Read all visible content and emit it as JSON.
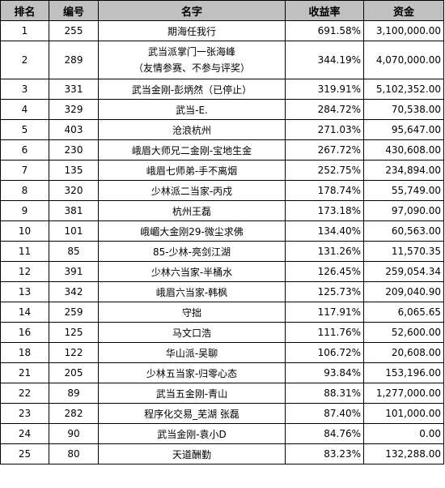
{
  "table": {
    "headers": [
      "排名",
      "编号",
      "名字",
      "收益率",
      "资金"
    ],
    "rows": [
      {
        "rank": "1",
        "code": "255",
        "name": "期海任我行",
        "rate": "691.58%",
        "fund": "3,100,000.00"
      },
      {
        "rank": "2",
        "code": "289",
        "name": "武当派掌门一张海峰",
        "name2": "（友情参赛、不参与评奖）",
        "rate": "344.19%",
        "fund": "4,070,000.00"
      },
      {
        "rank": "3",
        "code": "331",
        "name": "武当金刚-彭炳然（已停止）",
        "rate": "319.91%",
        "fund": "5,102,352.00"
      },
      {
        "rank": "4",
        "code": "329",
        "name": "武当-E.",
        "rate": "284.72%",
        "fund": "70,538.00"
      },
      {
        "rank": "5",
        "code": "403",
        "name": "沧浪杭州",
        "rate": "271.03%",
        "fund": "95,647.00"
      },
      {
        "rank": "6",
        "code": "230",
        "name": "峨眉大师兄二金刚-宝地生金",
        "rate": "267.72%",
        "fund": "430,608.00"
      },
      {
        "rank": "7",
        "code": "135",
        "name": "峨眉七师弟-手不离烟",
        "rate": "252.75%",
        "fund": "234,894.00"
      },
      {
        "rank": "8",
        "code": "320",
        "name": "少林派二当家-丙戍",
        "rate": "178.74%",
        "fund": "55,749.00"
      },
      {
        "rank": "9",
        "code": "381",
        "name": "杭州王磊",
        "rate": "173.18%",
        "fund": "97,090.00"
      },
      {
        "rank": "10",
        "code": "101",
        "name": "峨嵋大金刚29-微尘求佛",
        "rate": "134.40%",
        "fund": "60,563.00"
      },
      {
        "rank": "11",
        "code": "85",
        "name": "85-少林-亮剑江湖",
        "rate": "131.26%",
        "fund": "11,570.35"
      },
      {
        "rank": "12",
        "code": "391",
        "name": "少林六当家-半桶水",
        "rate": "126.45%",
        "fund": "259,054.34"
      },
      {
        "rank": "13",
        "code": "342",
        "name": "峨眉六当家-韩枫",
        "rate": "125.73%",
        "fund": "209,040.90"
      },
      {
        "rank": "14",
        "code": "259",
        "name": "守拙",
        "rate": "117.91%",
        "fund": "6,065.65"
      },
      {
        "rank": "16",
        "code": "125",
        "name": "马文口浩",
        "rate": "111.76%",
        "fund": "52,600.00"
      },
      {
        "rank": "18",
        "code": "122",
        "name": "华山派-吴聊",
        "rate": "106.72%",
        "fund": "20,608.00"
      },
      {
        "rank": "21",
        "code": "205",
        "name": "少林五当家-归零心态",
        "rate": "93.84%",
        "fund": "153,196.00"
      },
      {
        "rank": "22",
        "code": "89",
        "name": "武当五金刚-青山",
        "rate": "88.31%",
        "fund": "1,277,000.00"
      },
      {
        "rank": "23",
        "code": "282",
        "name": "程序化交易_芜湖 张磊",
        "rate": "87.40%",
        "fund": "101,000.00"
      },
      {
        "rank": "24",
        "code": "90",
        "name": "武当金刚-袁小D",
        "rate": "84.76%",
        "fund": "0.00"
      },
      {
        "rank": "25",
        "code": "80",
        "name": "天道酬勤",
        "rate": "83.23%",
        "fund": "132,288.00"
      }
    ]
  }
}
